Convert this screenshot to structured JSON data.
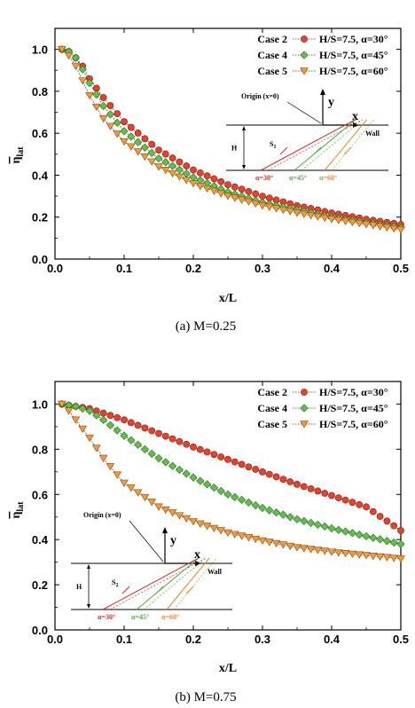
{
  "chart_data": [
    {
      "type": "line",
      "caption": "(a)  M=0.25",
      "xlabel": "x/L",
      "ylabel_main": "η",
      "ylabel_sub": "lat",
      "xlim": [
        0,
        0.5
      ],
      "ylim": [
        0,
        1.1
      ],
      "xticks": [
        "0.0",
        "0.1",
        "0.2",
        "0.3",
        "0.4",
        "0.5"
      ],
      "yticks": [
        "0.0",
        "0.2",
        "0.4",
        "0.6",
        "0.8",
        "1.0"
      ],
      "legend_position": "top-right",
      "series": [
        {
          "case": "Case 2",
          "name": "H/S=7.5, α=30°",
          "marker": "circle",
          "color": "#e8412c",
          "points": [
            [
              0.01,
              1.0
            ],
            [
              0.02,
              0.99
            ],
            [
              0.03,
              0.96
            ],
            [
              0.04,
              0.92
            ],
            [
              0.05,
              0.86
            ],
            [
              0.07,
              0.77
            ],
            [
              0.1,
              0.655
            ],
            [
              0.15,
              0.52
            ],
            [
              0.2,
              0.425
            ],
            [
              0.25,
              0.355
            ],
            [
              0.3,
              0.3
            ],
            [
              0.35,
              0.255
            ],
            [
              0.4,
              0.22
            ],
            [
              0.45,
              0.19
            ],
            [
              0.5,
              0.165
            ]
          ]
        },
        {
          "case": "Case 4",
          "name": "H/S=7.5, α=45°",
          "marker": "diamond",
          "color": "#5fc04a",
          "points": [
            [
              0.01,
              1.0
            ],
            [
              0.02,
              0.99
            ],
            [
              0.03,
              0.96
            ],
            [
              0.04,
              0.905
            ],
            [
              0.05,
              0.84
            ],
            [
              0.07,
              0.73
            ],
            [
              0.1,
              0.61
            ],
            [
              0.15,
              0.48
            ],
            [
              0.2,
              0.39
            ],
            [
              0.25,
              0.32
            ],
            [
              0.3,
              0.27
            ],
            [
              0.35,
              0.235
            ],
            [
              0.4,
              0.2
            ],
            [
              0.45,
              0.175
            ],
            [
              0.5,
              0.15
            ]
          ]
        },
        {
          "case": "Case 5",
          "name": "H/S=7.5, α=60°",
          "marker": "triangle-down",
          "color": "#f39a3a",
          "points": [
            [
              0.01,
              1.0
            ],
            [
              0.02,
              0.97
            ],
            [
              0.03,
              0.92
            ],
            [
              0.04,
              0.85
            ],
            [
              0.05,
              0.78
            ],
            [
              0.07,
              0.67
            ],
            [
              0.1,
              0.56
            ],
            [
              0.15,
              0.44
            ],
            [
              0.2,
              0.36
            ],
            [
              0.25,
              0.3
            ],
            [
              0.3,
              0.255
            ],
            [
              0.35,
              0.22
            ],
            [
              0.4,
              0.19
            ],
            [
              0.45,
              0.165
            ],
            [
              0.5,
              0.14
            ]
          ]
        }
      ],
      "inset": {
        "origin": "Origin (x=0)",
        "y": "y",
        "x": "x",
        "wall": "Wall",
        "h": "H",
        "s": "S",
        "s_sub": "1",
        "a30": "α=30°",
        "a45": "α=45°",
        "a60": "α=60°"
      }
    },
    {
      "type": "line",
      "caption": "(b)  M=0.75",
      "xlabel": "x/L",
      "ylabel_main": "η",
      "ylabel_sub": "lat",
      "xlim": [
        0,
        0.5
      ],
      "ylim": [
        0,
        1.1
      ],
      "xticks": [
        "0.0",
        "0.1",
        "0.2",
        "0.3",
        "0.4",
        "0.5"
      ],
      "yticks": [
        "0.0",
        "0.2",
        "0.4",
        "0.6",
        "0.8",
        "1.0"
      ],
      "legend_position": "top-right",
      "series": [
        {
          "case": "Case 2",
          "name": "H/S=7.5, α=30°",
          "marker": "circle",
          "color": "#e8412c",
          "points": [
            [
              0.01,
              1.0
            ],
            [
              0.03,
              0.99
            ],
            [
              0.05,
              0.98
            ],
            [
              0.07,
              0.96
            ],
            [
              0.1,
              0.93
            ],
            [
              0.15,
              0.87
            ],
            [
              0.2,
              0.81
            ],
            [
              0.25,
              0.755
            ],
            [
              0.3,
              0.7
            ],
            [
              0.35,
              0.645
            ],
            [
              0.4,
              0.595
            ],
            [
              0.45,
              0.545
            ],
            [
              0.5,
              0.44
            ]
          ]
        },
        {
          "case": "Case 4",
          "name": "H/S=7.5, α=45°",
          "marker": "diamond",
          "color": "#5fc04a",
          "points": [
            [
              0.01,
              1.0
            ],
            [
              0.03,
              0.99
            ],
            [
              0.05,
              0.97
            ],
            [
              0.07,
              0.93
            ],
            [
              0.1,
              0.86
            ],
            [
              0.15,
              0.76
            ],
            [
              0.2,
              0.675
            ],
            [
              0.25,
              0.6
            ],
            [
              0.3,
              0.54
            ],
            [
              0.35,
              0.49
            ],
            [
              0.4,
              0.45
            ],
            [
              0.45,
              0.415
            ],
            [
              0.5,
              0.38
            ]
          ]
        },
        {
          "case": "Case 5",
          "name": "H/S=7.5, α=60°",
          "marker": "triangle-down",
          "color": "#f39a3a",
          "points": [
            [
              0.01,
              1.0
            ],
            [
              0.02,
              0.97
            ],
            [
              0.03,
              0.93
            ],
            [
              0.05,
              0.85
            ],
            [
              0.07,
              0.76
            ],
            [
              0.1,
              0.65
            ],
            [
              0.15,
              0.545
            ],
            [
              0.2,
              0.48
            ],
            [
              0.25,
              0.43
            ],
            [
              0.3,
              0.395
            ],
            [
              0.35,
              0.365
            ],
            [
              0.4,
              0.345
            ],
            [
              0.45,
              0.33
            ],
            [
              0.5,
              0.315
            ]
          ]
        }
      ],
      "inset": {
        "origin": "Origin (x=0)",
        "y": "y",
        "x": "x",
        "wall": "Wall",
        "h": "H",
        "s": "S",
        "s_sub": "2",
        "a30": "α=30°",
        "a45": "α=45°",
        "a60": "α=60°"
      }
    }
  ]
}
